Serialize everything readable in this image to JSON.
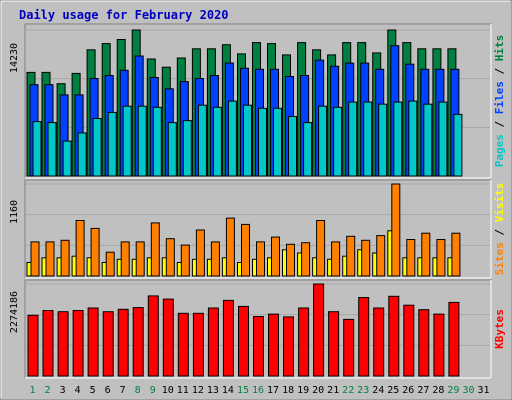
{
  "chart_data": {
    "type": "bar",
    "title": "Daily usage for February 2020",
    "categories": [
      "1",
      "2",
      "3",
      "4",
      "5",
      "6",
      "7",
      "8",
      "9",
      "10",
      "11",
      "12",
      "13",
      "14",
      "15",
      "16",
      "17",
      "18",
      "19",
      "20",
      "21",
      "22",
      "23",
      "24",
      "25",
      "26",
      "27",
      "28",
      "29",
      "30",
      "31"
    ],
    "weekend_days": [
      "1",
      "2",
      "8",
      "9",
      "15",
      "16",
      "22",
      "23",
      "29",
      "30"
    ],
    "panels": [
      {
        "id": "hits-files-pages",
        "ymax_label": "14230",
        "ylim": [
          0,
          14230
        ],
        "side_label": [
          {
            "text": "Pages",
            "color": "#00c8c8"
          },
          {
            "text": " / ",
            "color": "#000000"
          },
          {
            "text": "Files",
            "color": "#0040ff"
          },
          {
            "text": " / ",
            "color": "#000000"
          },
          {
            "text": "Hits",
            "color": "#008040"
          }
        ],
        "series": [
          {
            "name": "Hits",
            "color": "#008040",
            "values": [
              10100,
              10100,
              9000,
              10000,
              12300,
              12900,
              13300,
              14230,
              11400,
              10600,
              11500,
              12400,
              12400,
              12800,
              11900,
              13000,
              12900,
              11800,
              13000,
              12300,
              11800,
              13000,
              13000,
              12000,
              14230,
              13000,
              12400,
              12400,
              12400,
              null,
              null
            ]
          },
          {
            "name": "Files",
            "color": "#0040ff",
            "values": [
              8900,
              8900,
              7900,
              7900,
              9500,
              9800,
              10300,
              11700,
              9600,
              8500,
              9200,
              9500,
              9800,
              11000,
              10500,
              10400,
              10400,
              9700,
              9800,
              11300,
              10700,
              11000,
              11000,
              10400,
              12700,
              10900,
              10400,
              10400,
              10400,
              null,
              null
            ]
          },
          {
            "name": "Pages",
            "color": "#00c8c8",
            "values": [
              5300,
              5200,
              3400,
              4200,
              5600,
              6200,
              6800,
              6800,
              6700,
              5200,
              5400,
              6900,
              6700,
              7300,
              6900,
              6600,
              6600,
              5800,
              5200,
              6800,
              6700,
              7200,
              7200,
              7000,
              7200,
              7300,
              7000,
              7200,
              6000,
              null,
              null
            ]
          }
        ]
      },
      {
        "id": "sites-visits",
        "ymax_label": "1160",
        "ylim": [
          0,
          1160
        ],
        "side_label": [
          {
            "text": "Sites",
            "color": "#ff8000"
          },
          {
            "text": " / ",
            "color": "#000000"
          },
          {
            "text": "Visits",
            "color": "#ffff00"
          }
        ],
        "series": [
          {
            "name": "Visits",
            "color": "#ffff00",
            "values": [
              170,
              230,
              230,
              250,
              230,
              170,
              210,
              210,
              230,
              230,
              170,
              210,
              210,
              230,
              170,
              210,
              230,
              330,
              290,
              230,
              210,
              250,
              330,
              290,
              570,
              230,
              230,
              230,
              230,
              null,
              null
            ]
          },
          {
            "name": "Sites",
            "color": "#ff8000",
            "values": [
              430,
              430,
              450,
              700,
              600,
              300,
              430,
              430,
              670,
              470,
              390,
              580,
              430,
              730,
              650,
              430,
              490,
              400,
              420,
              700,
              430,
              500,
              450,
              510,
              1160,
              460,
              540,
              460,
              540,
              null,
              null
            ]
          }
        ]
      },
      {
        "id": "kbytes",
        "ymax_label": "2274186",
        "ylim": [
          0,
          2274186
        ],
        "side_label": [
          {
            "text": "KBytes",
            "color": "#ff0000"
          }
        ],
        "series": [
          {
            "name": "KBytes",
            "color": "#ff0000",
            "values": [
              1500000,
              1620000,
              1590000,
              1620000,
              1680000,
              1590000,
              1650000,
              1690000,
              1980000,
              1900000,
              1550000,
              1550000,
              1680000,
              1870000,
              1720000,
              1470000,
              1530000,
              1460000,
              1680000,
              2274186,
              1590000,
              1400000,
              1940000,
              1680000,
              1970000,
              1750000,
              1640000,
              1530000,
              1820000,
              null,
              null
            ]
          }
        ]
      }
    ]
  }
}
